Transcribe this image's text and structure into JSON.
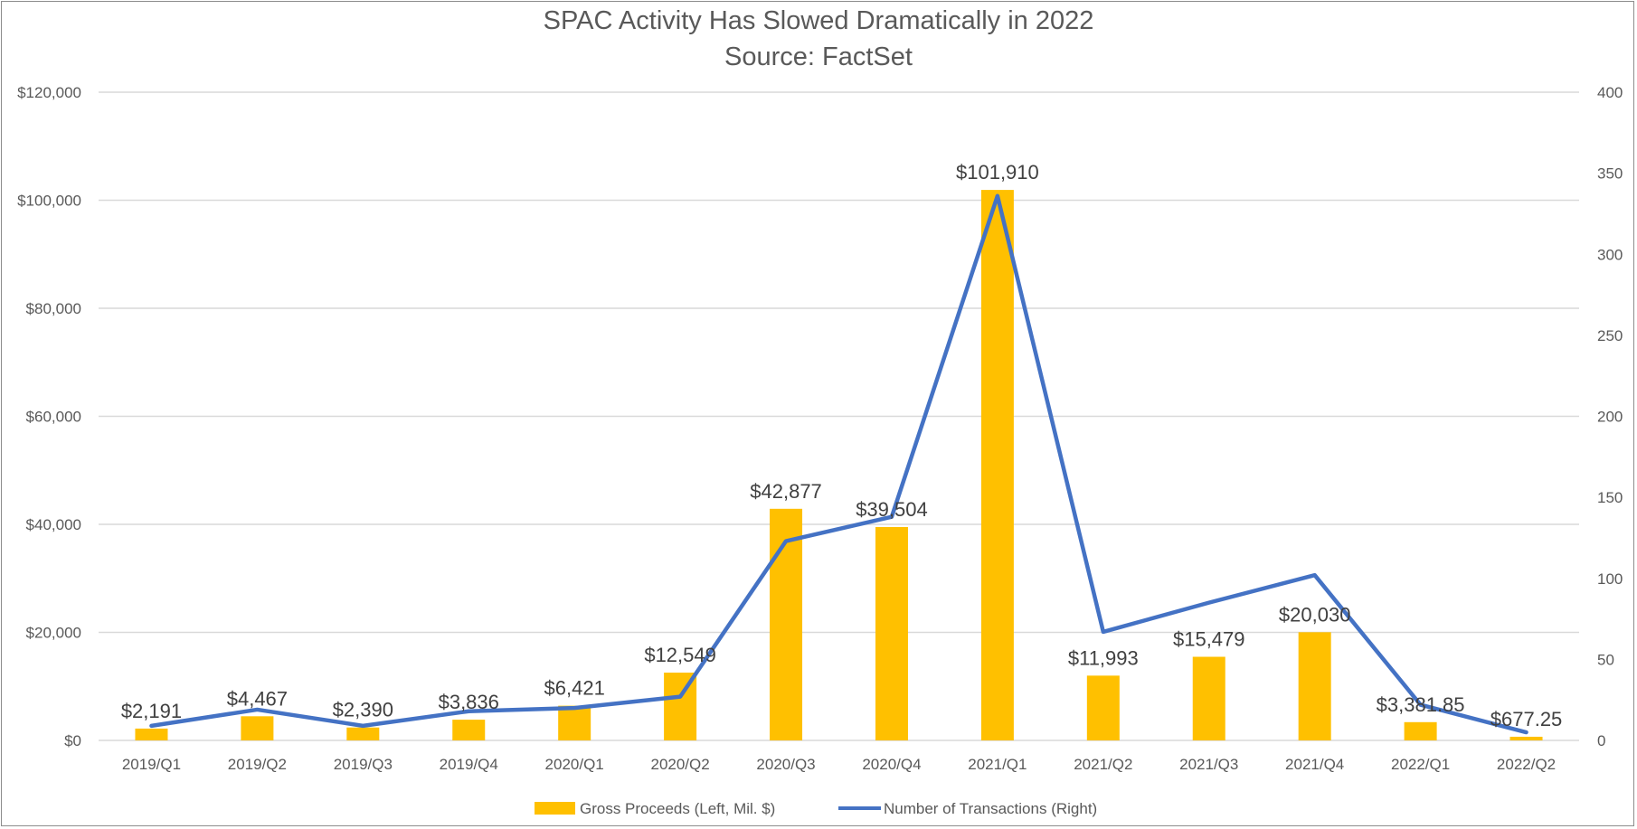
{
  "chart_data": {
    "type": "bar",
    "title": "SPAC Activity Has Slowed Dramatically in 2022",
    "subtitle": "Source: FactSet",
    "categories": [
      "2019/Q1",
      "2019/Q2",
      "2019/Q3",
      "2019/Q4",
      "2020/Q1",
      "2020/Q2",
      "2020/Q3",
      "2020/Q4",
      "2021/Q1",
      "2021/Q2",
      "2021/Q3",
      "2021/Q4",
      "2022/Q1",
      "2022/Q2"
    ],
    "series": [
      {
        "name": "Gross Proceeds (Left, Mil. $)",
        "type": "bar",
        "axis": "left",
        "color": "#FFC000",
        "values": [
          2191,
          4467,
          2390,
          3836,
          6421,
          12549,
          42877,
          39504,
          101910,
          11993,
          15479,
          20030,
          3381.85,
          677.25
        ],
        "labels": [
          "$2,191",
          "$4,467",
          "$2,390",
          "$3,836",
          "$6,421",
          "$12,549",
          "$42,877",
          "$39,504",
          "$101,910",
          "$11,993",
          "$15,479",
          "$20,030",
          "$3,381.85",
          "$677.25"
        ]
      },
      {
        "name": "Number of Transactions (Right)",
        "type": "line",
        "axis": "right",
        "color": "#4472C4",
        "values": [
          9,
          19,
          9,
          18,
          20,
          27,
          123,
          138,
          336,
          67,
          85,
          102,
          22,
          5
        ]
      }
    ],
    "left_axis": {
      "ylim": [
        0,
        120000
      ],
      "ticks": [
        0,
        20000,
        40000,
        60000,
        80000,
        100000,
        120000
      ],
      "tick_labels": [
        "$0",
        "$20,000",
        "$40,000",
        "$60,000",
        "$80,000",
        "$100,000",
        "$120,000"
      ]
    },
    "right_axis": {
      "ylim": [
        0,
        400
      ],
      "ticks": [
        0,
        50,
        100,
        150,
        200,
        250,
        300,
        350,
        400
      ],
      "tick_labels": [
        "0",
        "50",
        "100",
        "150",
        "200",
        "250",
        "300",
        "350",
        "400"
      ]
    },
    "grid": true,
    "legend_position": "bottom",
    "gridline_color": "#D9D9D9"
  }
}
